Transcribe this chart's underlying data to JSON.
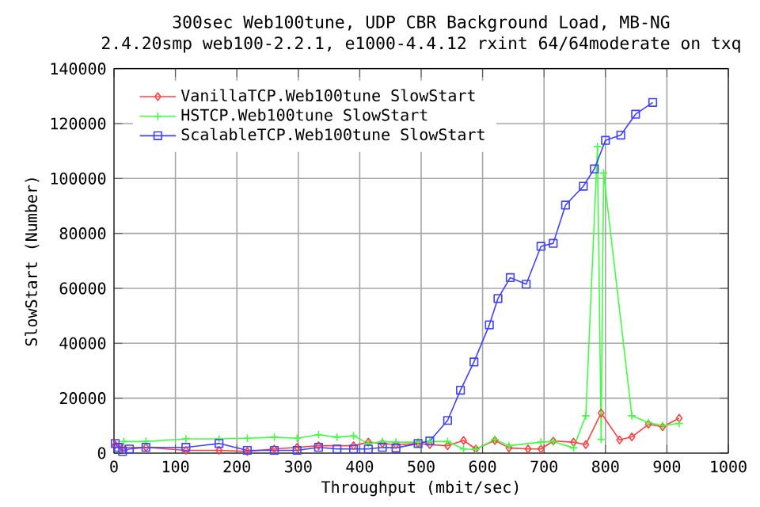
{
  "chart_data": {
    "type": "line",
    "title": "300sec Web100tune, UDP CBR Background Load, MB-NG",
    "subtitle": "2.4.20smp web100-2.2.1, e1000-4.4.12 rxint 64/64moderate on txq",
    "xlabel": "Throughput (mbit/sec)",
    "ylabel": "SlowStart (Number)",
    "xlim": [
      0,
      1000
    ],
    "ylim": [
      0,
      140000
    ],
    "xticks": [
      0,
      100,
      200,
      300,
      400,
      500,
      600,
      700,
      800,
      900,
      1000
    ],
    "yticks": [
      0,
      20000,
      40000,
      60000,
      80000,
      100000,
      120000,
      140000
    ],
    "grid": true,
    "legend": "top left",
    "line_style": "solid",
    "series": [
      {
        "name": "VanillaTCP.Web100tune SlowStart",
        "color": "#ff4040",
        "marker": "diamond",
        "x": [
          2,
          14,
          52,
          117,
          171,
          217,
          261,
          298,
          333,
          390,
          414,
          437,
          459,
          495,
          514,
          543,
          569,
          589,
          620,
          643,
          674,
          695,
          715,
          748,
          768,
          793,
          823,
          843,
          870,
          893,
          920
        ],
        "values": [
          3000,
          2100,
          2100,
          1000,
          1000,
          600,
          1500,
          2100,
          2700,
          2700,
          4000,
          3500,
          3100,
          3500,
          3100,
          2700,
          4600,
          1500,
          4600,
          1900,
          1500,
          1500,
          4400,
          4000,
          3100,
          14600,
          4800,
          5900,
          10500,
          9600,
          12700
        ]
      },
      {
        "name": "HSTCP.Web100tune SlowStart",
        "color": "#40ff40",
        "marker": "cross",
        "x": [
          16,
          52,
          117,
          171,
          217,
          261,
          298,
          333,
          363,
          390,
          414,
          437,
          459,
          495,
          514,
          543,
          569,
          589,
          620,
          643,
          695,
          715,
          748,
          768,
          787,
          793,
          797,
          843,
          870,
          893,
          920
        ],
        "values": [
          4200,
          4200,
          5200,
          5200,
          5400,
          5800,
          5400,
          6700,
          5800,
          6300,
          3500,
          4200,
          4000,
          4000,
          4200,
          4200,
          1500,
          1400,
          5000,
          2700,
          4000,
          4200,
          1900,
          13600,
          111600,
          5000,
          102000,
          13600,
          11100,
          10000,
          10800
        ]
      },
      {
        "name": "ScalableTCP.Web100tune SlowStart",
        "color": "#4040ff",
        "marker": "square",
        "x": [
          2,
          7,
          14,
          25,
          52,
          117,
          171,
          217,
          261,
          298,
          333,
          363,
          390,
          414,
          437,
          459,
          495,
          514,
          543,
          564,
          586,
          611,
          625,
          645,
          671,
          695,
          715,
          735,
          764,
          782,
          800,
          825,
          849,
          877
        ],
        "values": [
          3500,
          2100,
          600,
          1500,
          2100,
          2100,
          3500,
          1000,
          1000,
          1000,
          2100,
          1500,
          1500,
          1500,
          2100,
          1900,
          3500,
          4400,
          11900,
          22900,
          33200,
          46700,
          56300,
          63900,
          61500,
          75300,
          76400,
          90300,
          97200,
          103500,
          113900,
          115800,
          123400,
          127700
        ]
      }
    ]
  }
}
